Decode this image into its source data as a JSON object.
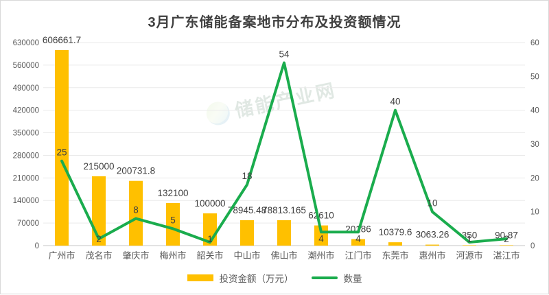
{
  "title": "3月广东储能备案地市分布及投资额情况",
  "watermark": {
    "text": "储能产业网"
  },
  "legend": {
    "items": [
      {
        "label": "投资金额（万元）",
        "marker": "bar",
        "color": "#FFC000"
      },
      {
        "label": "数量",
        "marker": "line",
        "color": "#1AAC4D"
      }
    ]
  },
  "chart_data": {
    "type": "combo-bar-line",
    "title": "3月广东储能备案地市分布及投资额情况",
    "categories": [
      "广州市",
      "茂名市",
      "肇庆市",
      "梅州市",
      "韶关市",
      "中山市",
      "佛山市",
      "潮州市",
      "江门市",
      "东莞市",
      "惠州市",
      "河源市",
      "湛江市"
    ],
    "series": [
      {
        "name": "投资金额（万元）",
        "type": "bar",
        "axis": "left",
        "color": "#FFC000",
        "values": [
          606661.7,
          215000,
          200731.8,
          132100,
          100000,
          78945.48,
          78813.165,
          62610,
          20186,
          10379.6,
          3063.26,
          350,
          90.87
        ],
        "labels": [
          "606661.7",
          "215000",
          "200731.8",
          "132100",
          "100000",
          "78945.48",
          "78813.165",
          "62610",
          "20186",
          "10379.6",
          "3063.26",
          "350",
          "90.87"
        ]
      },
      {
        "name": "数量",
        "type": "line",
        "axis": "right",
        "color": "#1AAC4D",
        "values": [
          25,
          2,
          8,
          5,
          1,
          18,
          54,
          4,
          4,
          40,
          10,
          1,
          2
        ],
        "labels": [
          "25",
          "2",
          "8",
          "5",
          "1",
          "18",
          "54",
          "4",
          "4",
          "40",
          "10",
          "1",
          "2"
        ],
        "label_positions": [
          "above",
          "below",
          "above",
          "above",
          "below",
          "above",
          "above",
          "below",
          "below",
          "above",
          "above",
          "below",
          "below"
        ]
      }
    ],
    "left_axis": {
      "min": 0,
      "max": 630000,
      "step": 70000
    },
    "right_axis": {
      "min": 0,
      "max": 60,
      "step": 10
    },
    "grid": true,
    "legend_position": "bottom"
  },
  "styles": {
    "bar_color": "#FFC000",
    "line_color": "#1AAC4D",
    "title_color": "#404040",
    "axis_label_color": "#595959",
    "data_label_color": "#404040",
    "gridline_color": "#EAEAEA",
    "axis_line_color": "#C6C6C6",
    "background": "#FFFFFF",
    "border_color": "#D9D9D9"
  }
}
